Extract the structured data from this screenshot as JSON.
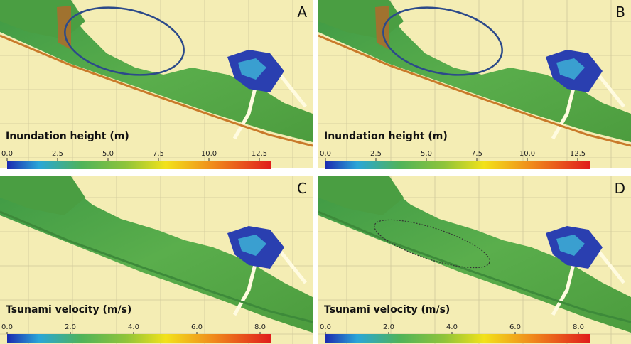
{
  "panels": [
    {
      "letter": "A",
      "colorbar": {
        "title": "Inundation height (m)",
        "ticks": [
          "0.0",
          "2.5",
          "5.0",
          "7.5",
          "10.0",
          "12.5"
        ]
      }
    },
    {
      "letter": "B",
      "colorbar": {
        "title": "Inundation height (m)",
        "ticks": [
          "0.0",
          "2.5",
          "5.0",
          "7.5",
          "10.0",
          "12.5"
        ]
      }
    },
    {
      "letter": "C",
      "colorbar": {
        "title": "Tsunami velocity (m/s)",
        "ticks": [
          "0.0",
          "2.0",
          "4.0",
          "6.0",
          "8.0"
        ]
      }
    },
    {
      "letter": "D",
      "colorbar": {
        "title": "Tsunami velocity (m/s)",
        "ticks": [
          "0.0",
          "2.0",
          "4.0",
          "6.0",
          "8.0"
        ]
      }
    }
  ]
}
